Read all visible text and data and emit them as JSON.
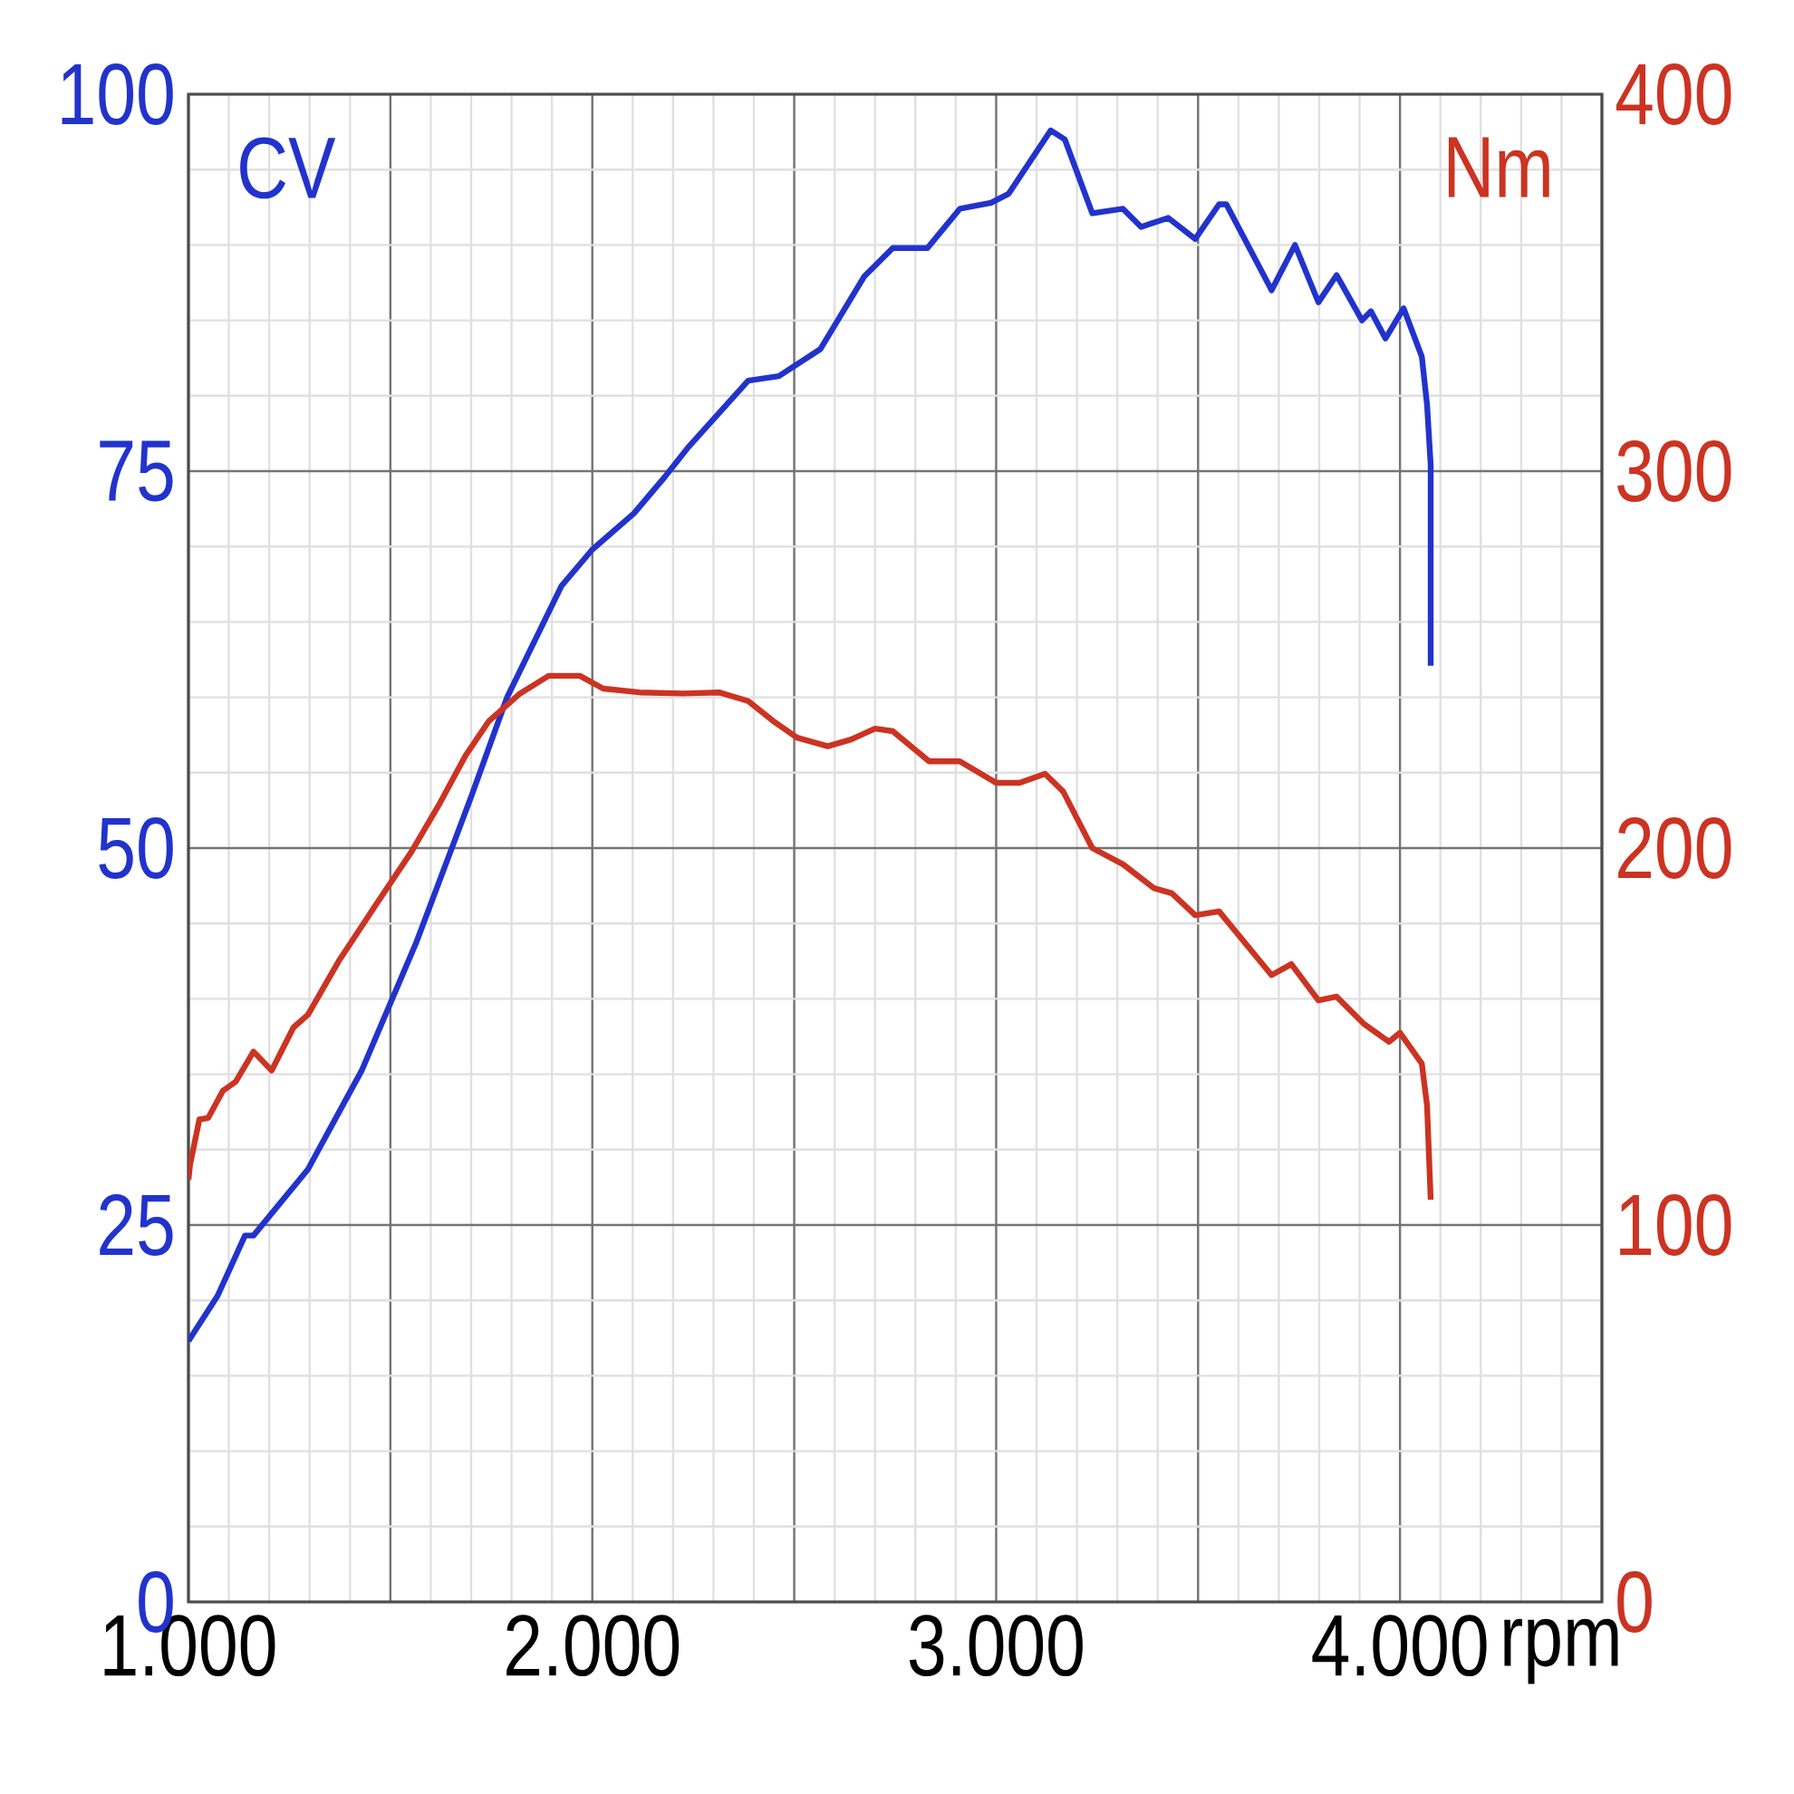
{
  "chart_data": {
    "type": "line",
    "xlabel": "rpm",
    "ylabel": "CV",
    "y2label": "Nm",
    "xlim": [
      1000,
      4500
    ],
    "ylim": [
      0,
      100
    ],
    "y2lim": [
      0,
      400
    ],
    "xticks": [
      {
        "value": 1000,
        "label": "1.000"
      },
      {
        "value": 1500,
        "label": null
      },
      {
        "value": 2000,
        "label": "2.000"
      },
      {
        "value": 2500,
        "label": null
      },
      {
        "value": 3000,
        "label": "3.000"
      },
      {
        "value": 3500,
        "label": null
      },
      {
        "value": 4000,
        "label": "4.000"
      },
      {
        "value": 4500,
        "label": null
      }
    ],
    "yticks": [
      0,
      25,
      50,
      75,
      100
    ],
    "y2ticks": [
      0,
      100,
      200,
      300,
      400
    ],
    "grid": true,
    "series": [
      {
        "color": "#2233cc",
        "x": [
          1000,
          1072,
          1140,
          1150,
          1161,
          1296,
          1430,
          1565,
          1700,
          1789,
          1924,
          2000,
          2103,
          2179,
          2238,
          2386,
          2462,
          2565,
          2673,
          2744,
          2830,
          2910,
          2987,
          3031,
          3135,
          3170,
          3238,
          3314,
          3359,
          3426,
          3493,
          3552,
          3570,
          3682,
          3740,
          3798,
          3843,
          3906,
          3928,
          3964,
          4009,
          4054,
          4067,
          4076,
          4076
        ],
        "values": [
          17.3,
          20.3,
          24.3,
          24.3,
          24.3,
          28.7,
          35.3,
          43.8,
          53.4,
          60.0,
          67.4,
          69.8,
          72.2,
          74.6,
          76.6,
          81.0,
          81.3,
          83.1,
          87.9,
          89.8,
          89.8,
          92.4,
          92.8,
          93.4,
          97.6,
          97.0,
          92.1,
          92.4,
          91.2,
          91.8,
          90.4,
          92.7,
          92.7,
          87.0,
          90.0,
          86.2,
          88.0,
          85.0,
          85.6,
          83.8,
          85.8,
          82.6,
          79.4,
          75.4,
          62.1
        ]
      },
      {
        "color": "#cc3322",
        "axis": "y2",
        "x": [
          1000,
          1004,
          1027,
          1049,
          1085,
          1117,
          1161,
          1206,
          1260,
          1296,
          1372,
          1462,
          1552,
          1623,
          1686,
          1744,
          1821,
          1892,
          1969,
          2027,
          2117,
          2224,
          2314,
          2386,
          2448,
          2507,
          2583,
          2641,
          2700,
          2744,
          2834,
          2910,
          3000,
          3058,
          3121,
          3166,
          3238,
          3314,
          3390,
          3435,
          3493,
          3552,
          3682,
          3731,
          3798,
          3843,
          3910,
          3973,
          4000,
          4054,
          4067,
          4076
        ],
        "values": [
          112,
          116,
          128,
          128.4,
          135.6,
          138,
          146,
          141,
          152.4,
          155.8,
          170,
          184.6,
          199,
          212,
          224.5,
          233.7,
          241,
          245.7,
          245.7,
          242.3,
          241.3,
          241,
          241.3,
          239,
          233.7,
          229.3,
          227,
          228.8,
          231.7,
          231,
          223,
          223,
          217.3,
          217.3,
          219.7,
          215,
          200,
          195.7,
          189.4,
          188,
          182.2,
          183.2,
          166.3,
          169.2,
          159.6,
          160.6,
          153.4,
          148.6,
          151,
          142.8,
          131.7,
          106.7
        ]
      }
    ]
  }
}
